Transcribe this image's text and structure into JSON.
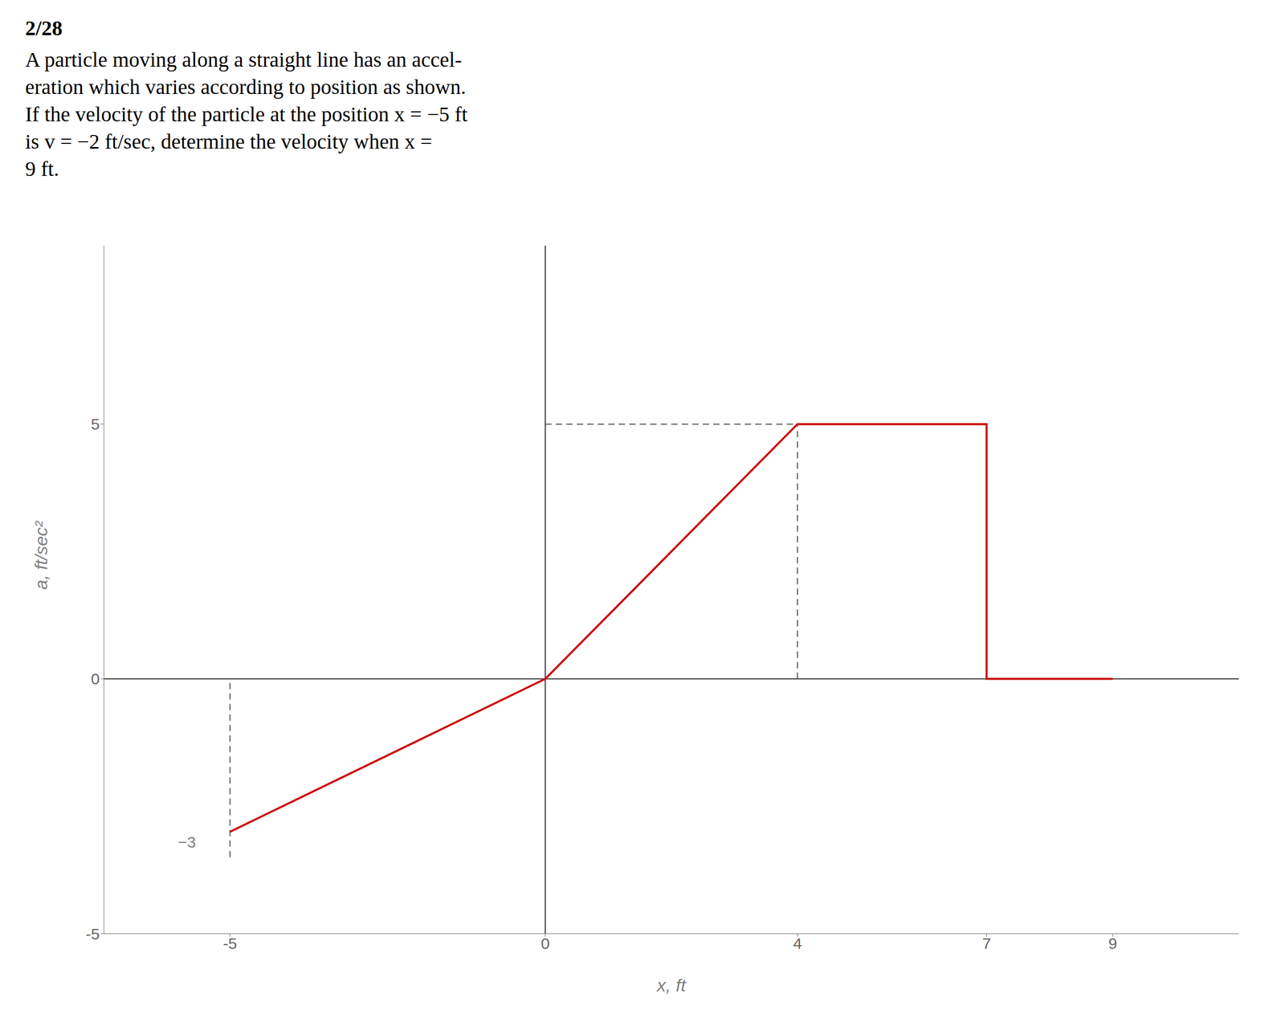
{
  "chart_data": {
    "type": "line",
    "title": "2/28",
    "subtitle": [
      "A particle moving along a straight line has an accel-",
      "eration which varies according to position as shown.",
      "If the velocity of the particle at the position x = −5 ft",
      "is v = −2 ft/sec, determine the velocity when x =",
      "9 ft."
    ],
    "xlabel": "x, ft",
    "ylabel": "a, ft/sec²",
    "x": [
      -5,
      0,
      4,
      7,
      7,
      9
    ],
    "values": [
      -3,
      0,
      5,
      5,
      0,
      0
    ],
    "color": "#cc1111",
    "xlim": [
      -7.0,
      11.0
    ],
    "ylim": [
      -5.0,
      8.5
    ],
    "xticks": [
      -5,
      0,
      4,
      7,
      9
    ],
    "yticks": [
      -5,
      0,
      5
    ],
    "grid": false,
    "guides": [
      {
        "x": [
          0,
          4
        ],
        "y": [
          5,
          5
        ]
      },
      {
        "x": [
          4,
          4
        ],
        "y": [
          0,
          5
        ]
      },
      {
        "x": [
          7,
          7
        ],
        "y": [
          0,
          5
        ]
      },
      {
        "x": [
          -5,
          -5
        ],
        "y": [
          -3.5,
          0
        ]
      }
    ],
    "annotations": [
      {
        "text": "−3",
        "x": -5.5,
        "y": -3.2
      }
    ]
  }
}
